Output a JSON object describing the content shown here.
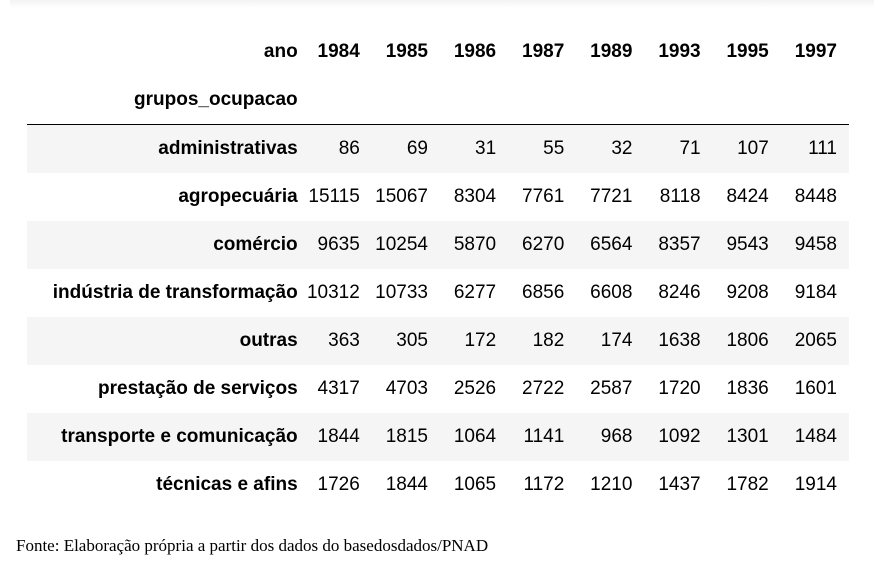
{
  "table": {
    "column_header_label": "ano",
    "index_label": "grupos_ocupacao",
    "years": [
      "1984",
      "1985",
      "1986",
      "1987",
      "1989",
      "1993",
      "1995",
      "1997"
    ],
    "rows": [
      {
        "group": "administrativas",
        "values": [
          "86",
          "69",
          "31",
          "55",
          "32",
          "71",
          "107",
          "111"
        ]
      },
      {
        "group": "agropecuária",
        "values": [
          "15115",
          "15067",
          "8304",
          "7761",
          "7721",
          "8118",
          "8424",
          "8448"
        ]
      },
      {
        "group": "comércio",
        "values": [
          "9635",
          "10254",
          "5870",
          "6270",
          "6564",
          "8357",
          "9543",
          "9458"
        ]
      },
      {
        "group": "indústria de transformação",
        "values": [
          "10312",
          "10733",
          "6277",
          "6856",
          "6608",
          "8246",
          "9208",
          "9184"
        ]
      },
      {
        "group": "outras",
        "values": [
          "363",
          "305",
          "172",
          "182",
          "174",
          "1638",
          "1806",
          "2065"
        ]
      },
      {
        "group": "prestação de serviços",
        "values": [
          "4317",
          "4703",
          "2526",
          "2722",
          "2587",
          "1720",
          "1836",
          "1601"
        ]
      },
      {
        "group": "transporte e comunicação",
        "values": [
          "1844",
          "1815",
          "1064",
          "1141",
          "968",
          "1092",
          "1301",
          "1484"
        ]
      },
      {
        "group": "técnicas e afins",
        "values": [
          "1726",
          "1844",
          "1065",
          "1172",
          "1210",
          "1437",
          "1782",
          "1914"
        ]
      }
    ]
  },
  "caption": "Fonte: Elaboração própria a partir dos dados do basedosdados/PNAD"
}
